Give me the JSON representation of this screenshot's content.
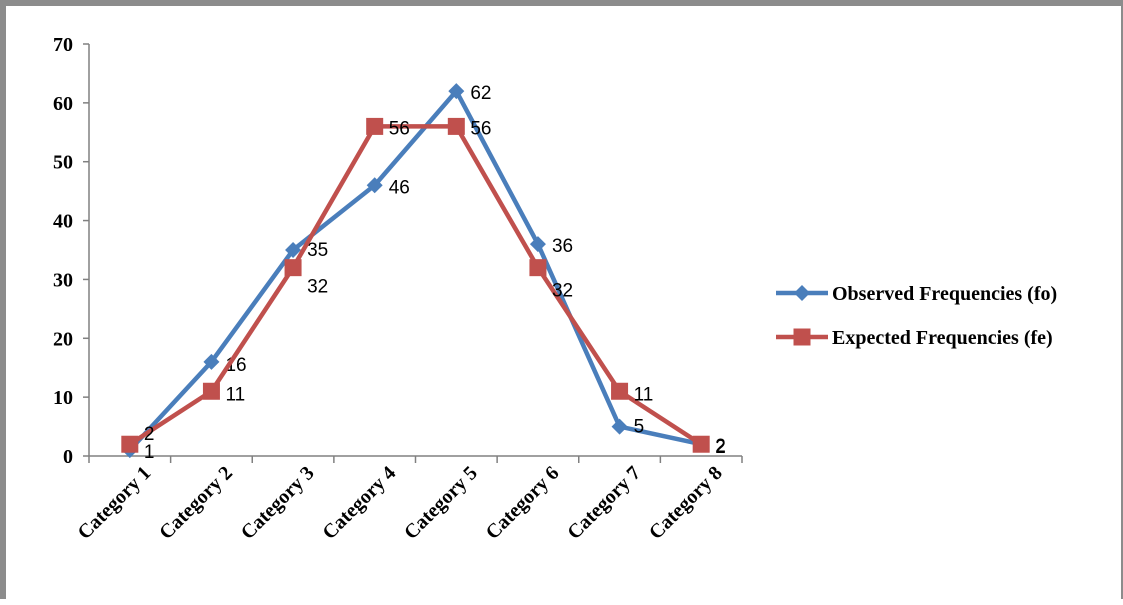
{
  "chart_data": {
    "type": "line",
    "categories": [
      "Category 1",
      "Category 2",
      "Category 3",
      "Category 4",
      "Category 5",
      "Category 6",
      "Category 7",
      "Category 8"
    ],
    "series": [
      {
        "name": "Observed Frequencies (fo)",
        "values": [
          1,
          16,
          35,
          46,
          62,
          36,
          5,
          2
        ],
        "color": "#4a7ebb",
        "marker": "diamond"
      },
      {
        "name": "Expected Frequencies (fe)",
        "values": [
          2,
          11,
          32,
          56,
          56,
          32,
          11,
          2
        ],
        "color": "#c0504d",
        "marker": "square"
      }
    ],
    "ylim": [
      0,
      70
    ],
    "yticks": [
      0,
      10,
      20,
      30,
      40,
      50,
      60,
      70
    ],
    "grid": false,
    "legend": "right",
    "data_labels": true
  }
}
